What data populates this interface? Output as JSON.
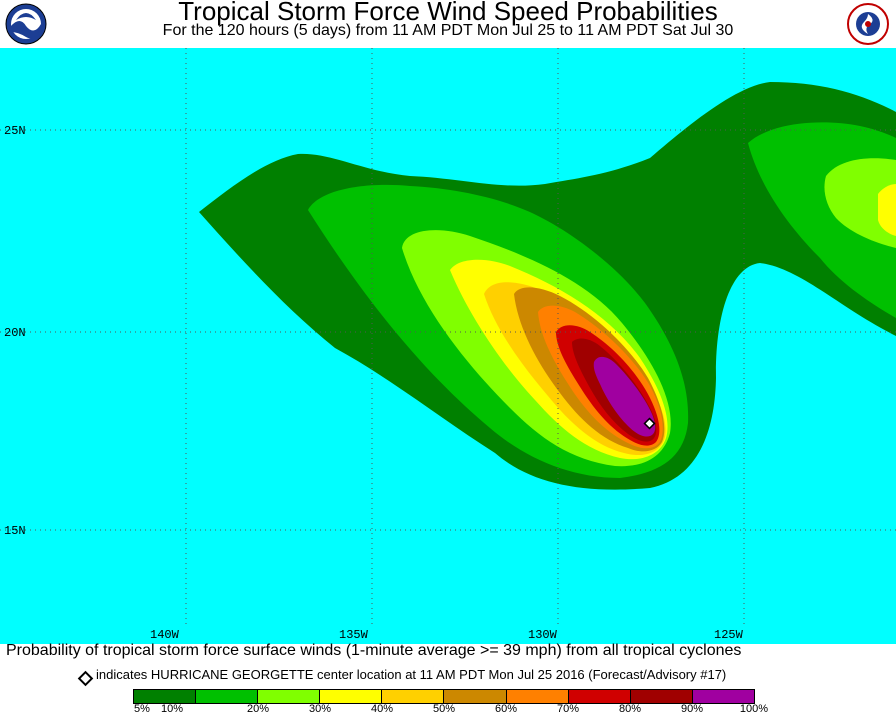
{
  "header": {
    "title": "Tropical Storm Force Wind Speed Probabilities",
    "subtitle": "For the 120 hours (5 days) from 11 AM PDT Mon Jul 25 to 11 AM PDT Sat Jul 30"
  },
  "logos": {
    "left": "noaa-logo",
    "right": "national-weather-service-logo"
  },
  "map": {
    "background_color": "#00ffff",
    "grid_style": "dotted",
    "lat_labels": [
      "25N",
      "20N",
      "15N"
    ],
    "lon_labels": [
      "140W",
      "135W",
      "130W",
      "125W"
    ],
    "storm_center_marker": "diamond"
  },
  "caption": {
    "main": "Probability of tropical storm force surface winds (1-minute average >= 39 mph) from all tropical cyclones",
    "marker_note": "indicates HURRICANE GEORGETTE center location at 11 AM PDT Mon Jul 25 2016 (Forecast/Advisory #17)"
  },
  "legend": {
    "colors": [
      "#008000",
      "#00c000",
      "#80ff00",
      "#ffff00",
      "#ffd000",
      "#cc8800",
      "#ff8000",
      "#d00000",
      "#a00000",
      "#a000a0"
    ],
    "labels": [
      "5%",
      "10%",
      "20%",
      "30%",
      "40%",
      "50%",
      "60%",
      "70%",
      "80%",
      "90%",
      "100%"
    ]
  }
}
